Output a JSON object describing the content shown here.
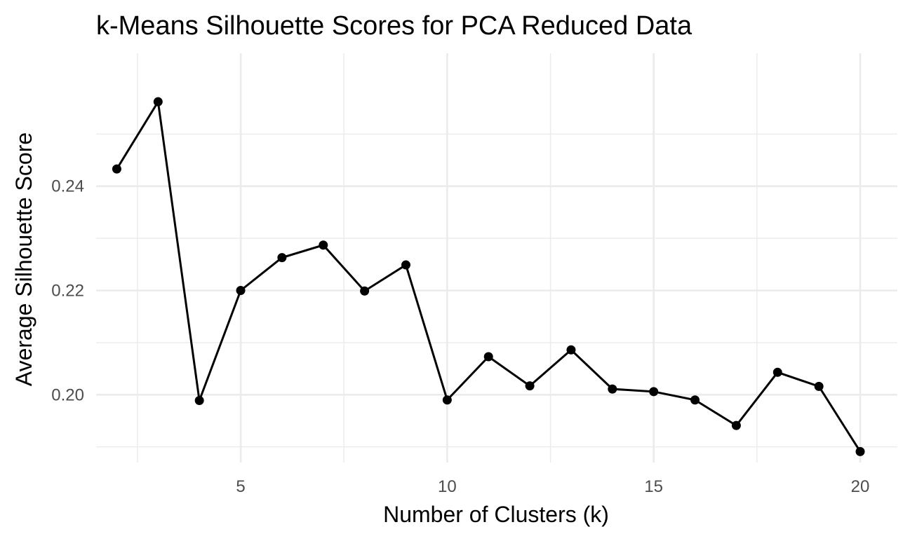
{
  "chart_data": {
    "type": "line",
    "title": "k-Means Silhouette Scores for PCA Reduced Data",
    "xlabel": "Number of Clusters (k)",
    "ylabel": "Average Silhouette Score",
    "xlim": [
      1.5,
      20.9
    ],
    "ylim": [
      0.187,
      0.2655
    ],
    "x_ticks": [
      5,
      10,
      15,
      20
    ],
    "x_minor_ticks": [
      2.5,
      7.5,
      12.5,
      17.5
    ],
    "y_ticks": [
      0.2,
      0.22,
      0.24
    ],
    "y_tick_labels": [
      "0.20",
      "0.22",
      "0.24"
    ],
    "y_minor_ticks": [
      0.19,
      0.21,
      0.23,
      0.25
    ],
    "grid": true,
    "legend": "none",
    "series": [
      {
        "color": "#000000",
        "x": [
          2,
          3,
          4,
          5,
          6,
          7,
          8,
          9,
          10,
          11,
          12,
          13,
          14,
          15,
          16,
          17,
          18,
          19,
          20
        ],
        "values": [
          0.2433,
          0.2562,
          0.1989,
          0.22,
          0.2263,
          0.2287,
          0.2199,
          0.2249,
          0.199,
          0.2073,
          0.2017,
          0.2086,
          0.2011,
          0.2006,
          0.199,
          0.1941,
          0.2043,
          0.2016,
          0.1891
        ]
      }
    ]
  }
}
